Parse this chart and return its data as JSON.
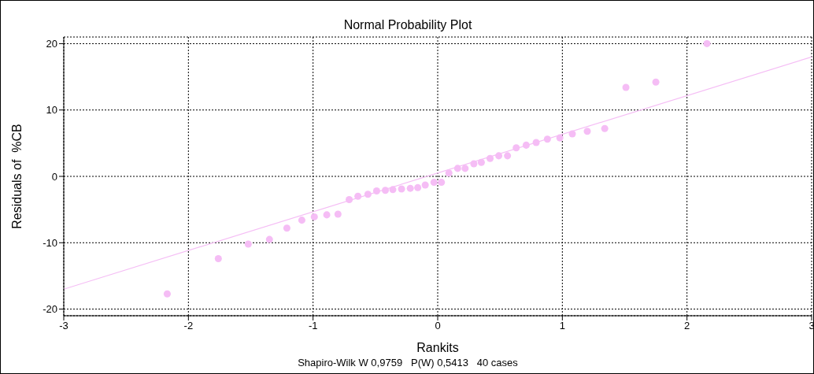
{
  "chart_data": {
    "type": "scatter",
    "title": "Normal Probability Plot",
    "xlabel": "Rankits",
    "ylabel": "Residuals of  %CB",
    "annotations": [
      "Shapiro-Wilk W 0,9759   P(W) 0,5413   40 cases"
    ],
    "series": [
      {
        "color": "#f5bdf5",
        "marker": "circle",
        "x": [
          -2.17,
          -1.76,
          -1.52,
          -1.35,
          -1.21,
          -1.09,
          -0.99,
          -0.89,
          -0.8,
          -0.71,
          -0.64,
          -0.56,
          -0.49,
          -0.42,
          -0.36,
          -0.29,
          -0.22,
          -0.16,
          -0.1,
          -0.03,
          0.03,
          0.09,
          0.16,
          0.22,
          0.29,
          0.35,
          0.42,
          0.49,
          0.56,
          0.63,
          0.71,
          0.79,
          0.88,
          0.98,
          1.08,
          1.2,
          1.34,
          1.51,
          1.75,
          2.16
        ],
        "values": [
          -17.7,
          -12.4,
          -10.2,
          -9.5,
          -7.8,
          -6.6,
          -6.1,
          -5.8,
          -5.7,
          -3.5,
          -3.0,
          -2.7,
          -2.2,
          -2.1,
          -2.0,
          -1.9,
          -1.8,
          -1.7,
          -1.3,
          -0.9,
          -0.9,
          0.5,
          1.2,
          1.2,
          1.9,
          2.1,
          2.7,
          3.1,
          3.1,
          4.3,
          4.7,
          5.1,
          5.6,
          5.8,
          6.4,
          6.8,
          7.2,
          13.4,
          14.2,
          20.0
        ]
      },
      {
        "type": "line",
        "color": "#f5bdf5",
        "marker": "none",
        "x": [
          -3,
          3
        ],
        "values": [
          -17,
          18
        ]
      }
    ],
    "xlim": [
      -3,
      3
    ],
    "xticks": [
      -3,
      -2,
      -1,
      0,
      1,
      2,
      3
    ],
    "ylim": [
      -21,
      21
    ],
    "yticks": [
      -20,
      -10,
      0,
      10,
      20
    ],
    "grid": true,
    "legend": false
  }
}
